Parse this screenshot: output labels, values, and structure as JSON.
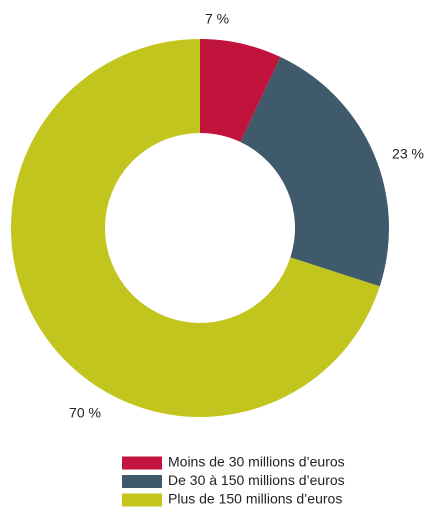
{
  "chart_data": {
    "type": "donut",
    "categories": [
      "Moins de 30 millions d’euros",
      "De 30 à 150 millions d’euros",
      "Plus de 150 millions d’euros"
    ],
    "values": [
      7,
      23,
      70
    ],
    "value_labels": [
      "7 %",
      "23 %",
      "70 %"
    ],
    "colors": [
      "#c0143c",
      "#3e5a6b",
      "#c1c51d"
    ]
  }
}
